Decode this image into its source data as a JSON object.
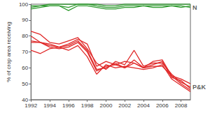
{
  "chart_data": {
    "type": "line",
    "ylabel": "% of crop area receiving",
    "x": [
      1992,
      1993,
      1994,
      1995,
      1996,
      1997,
      1998,
      1999,
      2000,
      2001,
      2002,
      2003,
      2004,
      2005,
      2006,
      2007,
      2008,
      2009
    ],
    "xlim": [
      1992,
      2009
    ],
    "xticks": [
      1992,
      1994,
      1996,
      1998,
      2000,
      2002,
      2004,
      2006,
      2008
    ],
    "ylim": [
      40,
      100
    ],
    "yticks": [
      40,
      50,
      60,
      70,
      80,
      90,
      100
    ],
    "grid": false,
    "series": [
      {
        "color": "#2e9a2e",
        "values": [
          98,
          99,
          99,
          99,
          98,
          100,
          100,
          99,
          98,
          98,
          99,
          99,
          99,
          99,
          99,
          99,
          99,
          98
        ]
      },
      {
        "color": "#2e9a2e",
        "values": [
          99,
          99,
          100,
          100,
          100,
          100,
          100,
          100,
          99,
          99,
          100,
          100,
          100,
          100,
          100,
          100,
          100,
          100
        ]
      },
      {
        "color": "#2e9a2e",
        "values": [
          97,
          98,
          99,
          99,
          96,
          99,
          99,
          98,
          97,
          97,
          98,
          98,
          99,
          98,
          98,
          99,
          98,
          99
        ]
      },
      {
        "color": "#e02828",
        "values": [
          83,
          81,
          76,
          75,
          77,
          79,
          72,
          63,
          59,
          64,
          62,
          71,
          61,
          63,
          63,
          56,
          51,
          48
        ]
      },
      {
        "color": "#e02828",
        "values": [
          80,
          76,
          75,
          73,
          75,
          78,
          75,
          61,
          64,
          62,
          64,
          63,
          60,
          64,
          65,
          55,
          50,
          46
        ]
      },
      {
        "color": "#e02828",
        "values": [
          77,
          76,
          73,
          72,
          73,
          76,
          70,
          58,
          61,
          62,
          60,
          65,
          60,
          62,
          64,
          54,
          52,
          47
        ]
      },
      {
        "color": "#e02828",
        "values": [
          71,
          69,
          72,
          73,
          71,
          74,
          67,
          56,
          62,
          60,
          61,
          60,
          59,
          60,
          62,
          53,
          49,
          45
        ]
      },
      {
        "color": "#e02828",
        "values": [
          76,
          76,
          74,
          73,
          74,
          77,
          71,
          59,
          60,
          63,
          60,
          63,
          60,
          61,
          61,
          55,
          53,
          50
        ]
      }
    ],
    "annotations": [
      {
        "text": "N",
        "x": 2009,
        "y": 98
      },
      {
        "text": "P&K",
        "x": 2009,
        "y": 48
      }
    ]
  }
}
